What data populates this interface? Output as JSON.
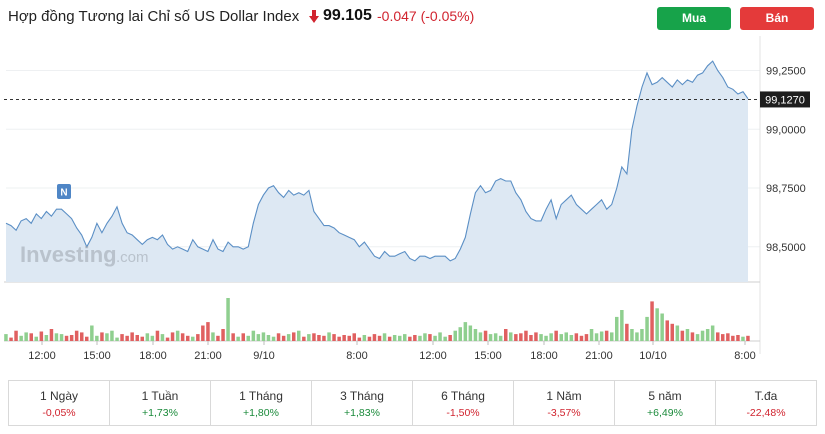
{
  "header": {
    "title": "Hợp đồng Tương lai Chỉ số US Dollar Index",
    "price": "99.105",
    "change": "-0.047",
    "change_pct": "(-0.05%)",
    "direction_icon": "arrow-down-icon",
    "buy_label": "Mua",
    "sell_label": "Bán",
    "colors": {
      "buy": "#17a34a",
      "sell": "#e43a3a",
      "negative": "#d1242f",
      "positive": "#1a8a3a"
    }
  },
  "chart": {
    "watermark": "Investing",
    "watermark_suffix": ".com",
    "news_marker": "N",
    "current_price_label": "99,1270",
    "y_ticks": [
      "99,2500",
      "99,0000",
      "98,7500",
      "98,5000"
    ],
    "x_ticks": [
      "12:00",
      "15:00",
      "18:00",
      "21:00",
      "9/10",
      "8:00",
      "12:00",
      "15:00",
      "18:00",
      "21:00",
      "10/10",
      "8:00"
    ]
  },
  "chart_data": {
    "type": "area",
    "ylim": [
      98.35,
      99.38
    ],
    "x": [
      0,
      1,
      2,
      3,
      4,
      5,
      6,
      7,
      8,
      9,
      10,
      11,
      12,
      13,
      14,
      15,
      16,
      17,
      18,
      19,
      20,
      21,
      22,
      23,
      24,
      25,
      26,
      27,
      28,
      29,
      30,
      31,
      32,
      33,
      34,
      35,
      36,
      37,
      38,
      39,
      40,
      41,
      42,
      43,
      44,
      45,
      46,
      47,
      48,
      49,
      50,
      51,
      52,
      53,
      54,
      55,
      56,
      57,
      58,
      59,
      60,
      61,
      62,
      63,
      64,
      65,
      66,
      67,
      68,
      69,
      70,
      71,
      72,
      73,
      74,
      75,
      76,
      77,
      78,
      79,
      80,
      81,
      82,
      83,
      84,
      85,
      86,
      87,
      88,
      89,
      90,
      91,
      92,
      93,
      94,
      95,
      96,
      97,
      98,
      99,
      100,
      101,
      102,
      103,
      104,
      105,
      106,
      107,
      108,
      109,
      110,
      111,
      112,
      113,
      114,
      115,
      116,
      117,
      118,
      119,
      120,
      121,
      122,
      123,
      124,
      125,
      126,
      127,
      128,
      129,
      130,
      131,
      132,
      133,
      134,
      135,
      136,
      137,
      138,
      139,
      140,
      141,
      142,
      143,
      144,
      145,
      146,
      147
    ],
    "series": [
      {
        "values": [
          98.6,
          98.59,
          98.57,
          98.61,
          98.62,
          98.6,
          98.64,
          98.62,
          98.65,
          98.63,
          98.66,
          98.66,
          98.64,
          98.62,
          98.58,
          98.55,
          98.5,
          98.54,
          98.6,
          98.56,
          98.6,
          98.63,
          98.67,
          98.6,
          98.56,
          98.55,
          98.53,
          98.51,
          98.53,
          98.54,
          98.53,
          98.55,
          98.51,
          98.49,
          98.5,
          98.49,
          98.48,
          98.53,
          98.5,
          98.49,
          98.48,
          98.53,
          98.49,
          98.48,
          98.52,
          98.5,
          98.5,
          98.49,
          98.5,
          98.6,
          98.68,
          98.72,
          98.75,
          98.76,
          98.73,
          98.71,
          98.74,
          98.72,
          98.73,
          98.72,
          98.74,
          98.65,
          98.62,
          98.59,
          98.59,
          98.58,
          98.56,
          98.55,
          98.54,
          98.53,
          98.5,
          98.52,
          98.49,
          98.46,
          98.45,
          98.48,
          98.46,
          98.46,
          98.47,
          98.48,
          98.45,
          98.44,
          98.46,
          98.46,
          98.45,
          98.46,
          98.46,
          98.46,
          98.44,
          98.45,
          98.49,
          98.54,
          98.64,
          98.73,
          98.76,
          98.73,
          98.74,
          98.78,
          98.79,
          98.78,
          98.78,
          98.73,
          98.7,
          98.65,
          98.62,
          98.61,
          98.61,
          98.66,
          98.7,
          98.62,
          98.68,
          98.7,
          98.72,
          98.68,
          98.66,
          98.64,
          98.66,
          98.68,
          98.7,
          98.66,
          98.68,
          98.75,
          98.84,
          98.81,
          99.0,
          99.1,
          99.18,
          99.24,
          99.19,
          99.2,
          99.22,
          99.2,
          99.18,
          99.21,
          99.19,
          99.21,
          99.2,
          99.23,
          99.24,
          99.27,
          99.29,
          99.25,
          99.22,
          99.18,
          99.17,
          99.15,
          99.16,
          99.13
        ]
      }
    ],
    "volume": [
      8,
      4,
      12,
      6,
      10,
      9,
      5,
      11,
      7,
      14,
      9,
      8,
      6,
      7,
      12,
      10,
      5,
      18,
      6,
      10,
      9,
      12,
      4,
      8,
      6,
      10,
      7,
      5,
      9,
      6,
      12,
      8,
      4,
      10,
      12,
      9,
      6,
      5,
      8,
      18,
      22,
      10,
      6,
      14,
      50,
      9,
      5,
      9,
      6,
      12,
      8,
      10,
      7,
      5,
      9,
      6,
      8,
      10,
      12,
      5,
      8,
      9,
      7,
      6,
      10,
      8,
      5,
      7,
      6,
      9,
      4,
      7,
      5,
      8,
      6,
      9,
      5,
      7,
      6,
      8,
      5,
      7,
      6,
      9,
      8,
      6,
      10,
      5,
      7,
      12,
      16,
      22,
      18,
      14,
      10,
      12,
      8,
      9,
      6,
      14,
      10,
      8,
      9,
      12,
      7,
      10,
      8,
      6,
      9,
      12,
      8,
      10,
      7,
      9,
      6,
      8,
      14,
      9,
      11,
      12,
      10,
      28,
      36,
      20,
      14,
      10,
      14,
      28,
      46,
      38,
      32,
      24,
      20,
      18,
      12,
      14,
      10,
      8,
      12,
      14,
      18,
      10,
      8,
      9,
      6,
      7,
      5,
      6
    ],
    "volume_colors_pattern": "up=#8fcf8f, down=#e06060",
    "yticks": [
      99.25,
      99.0,
      98.75,
      98.5
    ]
  },
  "periods": [
    {
      "label": "1 Ngày",
      "value": "-0,05%",
      "dir": "neg"
    },
    {
      "label": "1 Tuần",
      "value": "+1,73%",
      "dir": "pos"
    },
    {
      "label": "1 Tháng",
      "value": "+1,80%",
      "dir": "pos"
    },
    {
      "label": "3 Tháng",
      "value": "+1,83%",
      "dir": "pos"
    },
    {
      "label": "6 Tháng",
      "value": "-1,50%",
      "dir": "neg"
    },
    {
      "label": "1 Năm",
      "value": "-3,57%",
      "dir": "neg"
    },
    {
      "label": "5 năm",
      "value": "+6,49%",
      "dir": "pos"
    },
    {
      "label": "T.đa",
      "value": "-22,48%",
      "dir": "neg"
    }
  ]
}
